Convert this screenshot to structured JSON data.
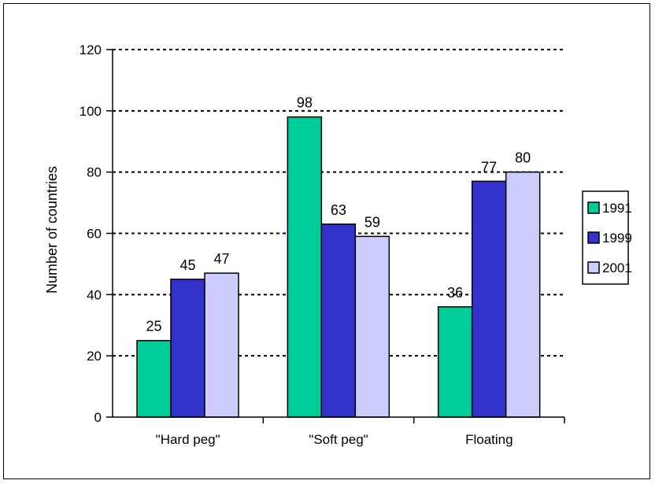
{
  "chart_data": {
    "type": "bar",
    "title": "",
    "xlabel": "",
    "ylabel": "Number of countries",
    "categories": [
      "\"Hard peg\"",
      "\"Soft peg\"",
      "Floating"
    ],
    "series": [
      {
        "name": "1991",
        "color": "#00CC99",
        "values": [
          25,
          98,
          36
        ]
      },
      {
        "name": "1999",
        "color": "#3333CC",
        "values": [
          45,
          63,
          77
        ]
      },
      {
        "name": "2001",
        "color": "#CCCCFF",
        "values": [
          47,
          59,
          80
        ]
      }
    ],
    "ylim": [
      0,
      120
    ],
    "yticks": [
      0,
      20,
      40,
      60,
      80,
      100,
      120
    ],
    "grid": "horizontal-dotted",
    "legend": "right",
    "data_labels": true
  }
}
